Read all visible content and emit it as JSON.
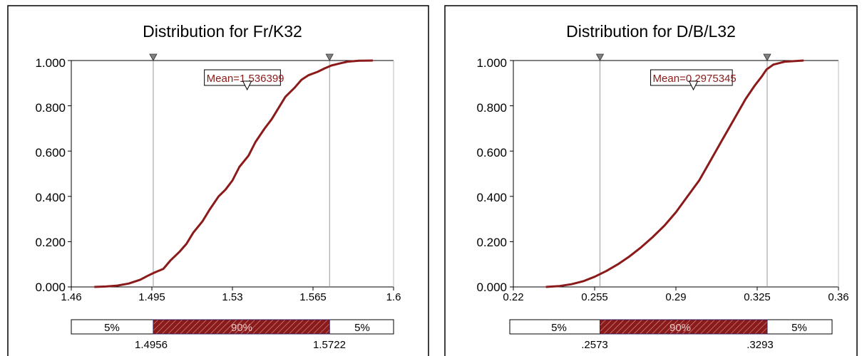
{
  "chart_data": [
    {
      "type": "line",
      "title": "Distribution for Fr/K32",
      "xlim": [
        1.46,
        1.6
      ],
      "ylim": [
        0,
        1
      ],
      "x_ticks": [
        1.46,
        1.495,
        1.53,
        1.565,
        1.6
      ],
      "x_tick_labels": [
        "1.46",
        "1.495",
        "1.53",
        "1.565",
        "1.6"
      ],
      "y_ticks": [
        0,
        0.2,
        0.4,
        0.6,
        0.8,
        1.0
      ],
      "y_tick_labels": [
        "0.000",
        "0.200",
        "0.400",
        "0.600",
        "0.800",
        "1.000"
      ],
      "series": [
        {
          "x": [
            1.47,
            1.475,
            1.48,
            1.485,
            1.49,
            1.493,
            1.496,
            1.5,
            1.503,
            1.507,
            1.51,
            1.513,
            1.517,
            1.52,
            1.524,
            1.527,
            1.53,
            1.533,
            1.537,
            1.54,
            1.544,
            1.547,
            1.55,
            1.553,
            1.557,
            1.56,
            1.563,
            1.567,
            1.57,
            1.573,
            1.577,
            1.58,
            1.585,
            1.591
          ],
          "y": [
            0.0,
            0.002,
            0.006,
            0.015,
            0.032,
            0.048,
            0.063,
            0.08,
            0.116,
            0.155,
            0.19,
            0.24,
            0.29,
            0.34,
            0.4,
            0.43,
            0.47,
            0.53,
            0.58,
            0.64,
            0.7,
            0.74,
            0.79,
            0.84,
            0.88,
            0.915,
            0.935,
            0.95,
            0.965,
            0.978,
            0.988,
            0.995,
            0.999,
            1.0
          ]
        }
      ],
      "mean": {
        "label": "Mean=1.536399",
        "value": 1.536399
      },
      "markers": [
        1.4956,
        1.5722
      ],
      "percent_bar": {
        "left": "5%",
        "middle": "90%",
        "right": "5%",
        "low_label": "1.4956",
        "high_label": "1.5722"
      }
    },
    {
      "type": "line",
      "title": "Distribution for D/B/L32",
      "xlim": [
        0.22,
        0.36
      ],
      "ylim": [
        0,
        1
      ],
      "x_ticks": [
        0.22,
        0.255,
        0.29,
        0.325,
        0.36
      ],
      "x_tick_labels": [
        "0.22",
        "0.255",
        "0.29",
        "0.325",
        "0.36"
      ],
      "y_ticks": [
        0,
        0.2,
        0.4,
        0.6,
        0.8,
        1.0
      ],
      "y_tick_labels": [
        "0.000",
        "0.200",
        "0.400",
        "0.600",
        "0.800",
        "1.000"
      ],
      "series": [
        {
          "x": [
            0.234,
            0.24,
            0.245,
            0.25,
            0.255,
            0.26,
            0.265,
            0.27,
            0.275,
            0.28,
            0.285,
            0.29,
            0.295,
            0.3,
            0.305,
            0.31,
            0.315,
            0.32,
            0.324,
            0.327,
            0.329,
            0.332,
            0.337,
            0.345
          ],
          "y": [
            0.0,
            0.004,
            0.012,
            0.025,
            0.045,
            0.07,
            0.1,
            0.135,
            0.175,
            0.22,
            0.27,
            0.33,
            0.4,
            0.47,
            0.56,
            0.65,
            0.74,
            0.83,
            0.89,
            0.93,
            0.96,
            0.982,
            0.995,
            1.0
          ]
        }
      ],
      "mean": {
        "label": "Mean=0.2975345",
        "value": 0.2975345
      },
      "markers": [
        0.2573,
        0.3293
      ],
      "percent_bar": {
        "left": "5%",
        "middle": "90%",
        "right": "5%",
        "low_label": ".2573",
        "high_label": ".3293"
      }
    }
  ],
  "colors": {
    "curve": "#8b1a1a",
    "marker_line": "#999999",
    "marker_triangle": "#808080",
    "bar_fill": "#8b1a1a",
    "frame": "#000000",
    "mean_text": "#8b1a1a"
  }
}
